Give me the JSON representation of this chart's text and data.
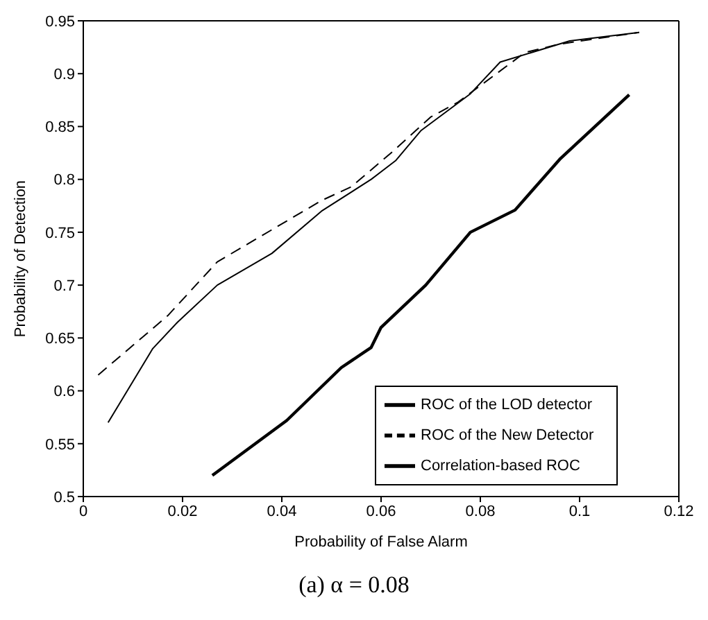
{
  "chart_data": {
    "type": "line",
    "xlabel": "Probability of False Alarm",
    "ylabel": "Probability of Detection",
    "annotations": [
      "(a) α = 0.08"
    ],
    "xlim": [
      0,
      0.12
    ],
    "xticks": [
      0,
      0.02,
      0.04,
      0.06,
      0.08,
      0.1,
      0.12
    ],
    "ylim": [
      0.5,
      0.95
    ],
    "yticks": [
      0.5,
      0.55,
      0.6,
      0.65,
      0.7,
      0.75,
      0.8,
      0.85,
      0.9,
      0.95
    ],
    "grid": false,
    "legend": "bottom right",
    "marker": "none",
    "series": [
      {
        "name": "ROC of the LOD detector",
        "color": "#000000",
        "line_style": "solid",
        "x": [
          0.005,
          0.014,
          0.019,
          0.027,
          0.038,
          0.048,
          0.058,
          0.063,
          0.068,
          0.078,
          0.084,
          0.098,
          0.112
        ],
        "values": [
          0.57,
          0.64,
          0.665,
          0.7,
          0.73,
          0.77,
          0.8,
          0.818,
          0.846,
          0.881,
          0.911,
          0.931,
          0.939
        ]
      },
      {
        "name": "ROC of the New Detector",
        "color": "#000000",
        "line_style": "dashed",
        "x": [
          0.003,
          0.017,
          0.027,
          0.048,
          0.054,
          0.0625,
          0.07,
          0.0755,
          0.089,
          0.096,
          0.112
        ],
        "values": [
          0.615,
          0.671,
          0.722,
          0.78,
          0.793,
          0.827,
          0.859,
          0.873,
          0.92,
          0.928,
          0.939
        ]
      },
      {
        "name": "Correlation-based ROC",
        "color": "#000000",
        "line_style": "solid",
        "x": [
          0.026,
          0.041,
          0.052,
          0.058,
          0.06,
          0.069,
          0.078,
          0.087,
          0.096,
          0.11
        ],
        "values": [
          0.52,
          0.572,
          0.622,
          0.641,
          0.66,
          0.7,
          0.75,
          0.771,
          0.819,
          0.88
        ]
      }
    ]
  }
}
